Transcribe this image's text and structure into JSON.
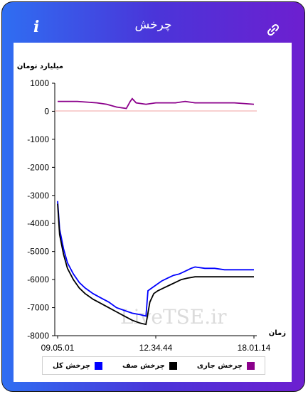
{
  "header": {
    "title": "چرخش"
  },
  "icons": {
    "info": "info-icon",
    "link": "link-icon"
  },
  "watermark": "LiveTSE.ir",
  "chart_data": {
    "type": "line",
    "ylabel": "میلیارد تومان",
    "xlabel": "زمان",
    "ylim": [
      -8000,
      1000
    ],
    "yticks": [
      1000,
      0,
      -1000,
      -2000,
      -3000,
      -4000,
      -5000,
      -6000,
      -7000,
      -8000
    ],
    "ytick_labels": [
      "1000",
      "0",
      "-1000",
      "-2000",
      "-3000",
      "-4000",
      "-5000",
      "-6000",
      "-7000",
      "-8000"
    ],
    "xtick_labels": [
      "09.05.01",
      "12.34.44",
      "18.01.14"
    ],
    "grid": false,
    "legend_position": "bottom",
    "series": [
      {
        "name": "چرخش کل",
        "color": "#0000ff",
        "values": [
          [
            0,
            -3200
          ],
          [
            1,
            -4200
          ],
          [
            3,
            -4900
          ],
          [
            5,
            -5400
          ],
          [
            8,
            -5800
          ],
          [
            11,
            -6100
          ],
          [
            14,
            -6300
          ],
          [
            18,
            -6500
          ],
          [
            22,
            -6650
          ],
          [
            26,
            -6800
          ],
          [
            30,
            -7000
          ],
          [
            34,
            -7100
          ],
          [
            38,
            -7200
          ],
          [
            42,
            -7250
          ],
          [
            45,
            -7300
          ],
          [
            46,
            -6400
          ],
          [
            48,
            -6300
          ],
          [
            50,
            -6200
          ],
          [
            53,
            -6050
          ],
          [
            56,
            -5950
          ],
          [
            59,
            -5850
          ],
          [
            62,
            -5800
          ],
          [
            65,
            -5700
          ],
          [
            68,
            -5600
          ],
          [
            70,
            -5550
          ],
          [
            75,
            -5600
          ],
          [
            80,
            -5600
          ],
          [
            85,
            -5650
          ],
          [
            90,
            -5650
          ],
          [
            95,
            -5650
          ],
          [
            100,
            -5650
          ]
        ]
      },
      {
        "name": "چرخش صف",
        "color": "#000000",
        "values": [
          [
            0,
            -3300
          ],
          [
            1,
            -4400
          ],
          [
            3,
            -5100
          ],
          [
            5,
            -5600
          ],
          [
            8,
            -6000
          ],
          [
            11,
            -6300
          ],
          [
            14,
            -6500
          ],
          [
            18,
            -6700
          ],
          [
            22,
            -6850
          ],
          [
            26,
            -7000
          ],
          [
            30,
            -7150
          ],
          [
            34,
            -7300
          ],
          [
            38,
            -7450
          ],
          [
            42,
            -7550
          ],
          [
            45,
            -7600
          ],
          [
            47,
            -6800
          ],
          [
            49,
            -6500
          ],
          [
            51,
            -6400
          ],
          [
            54,
            -6300
          ],
          [
            57,
            -6200
          ],
          [
            60,
            -6100
          ],
          [
            63,
            -6000
          ],
          [
            66,
            -5950
          ],
          [
            70,
            -5900
          ],
          [
            80,
            -5900
          ],
          [
            90,
            -5900
          ],
          [
            100,
            -5900
          ]
        ]
      },
      {
        "name": "چرخش جاری",
        "color": "#8b008b",
        "values": [
          [
            0,
            350
          ],
          [
            10,
            350
          ],
          [
            20,
            300
          ],
          [
            25,
            250
          ],
          [
            30,
            150
          ],
          [
            35,
            100
          ],
          [
            37,
            350
          ],
          [
            38,
            450
          ],
          [
            40,
            300
          ],
          [
            45,
            250
          ],
          [
            50,
            300
          ],
          [
            60,
            300
          ],
          [
            65,
            350
          ],
          [
            70,
            300
          ],
          [
            80,
            300
          ],
          [
            90,
            300
          ],
          [
            100,
            250
          ]
        ]
      }
    ]
  }
}
